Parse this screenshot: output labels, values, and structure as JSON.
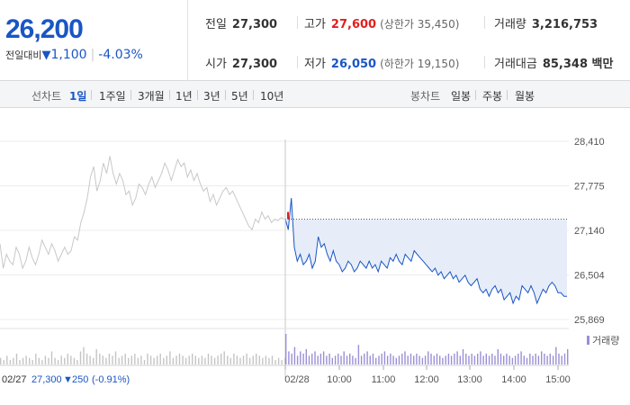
{
  "quote": {
    "price": "26,200",
    "change_label": "전일대비",
    "change_arrow": "▼",
    "change_value": "1,100",
    "change_pct": "-4.03%"
  },
  "stats": {
    "prev_label": "전일",
    "prev_value": "27,300",
    "open_label": "시가",
    "open_value": "27,300",
    "high_label": "고가",
    "high_value": "27,600",
    "upper_limit": "(상한가 35,450)",
    "low_label": "저가",
    "low_value": "26,050",
    "lower_limit": "(하한가 19,150)",
    "volume_label": "거래량",
    "volume_value": "3,216,753",
    "amount_label": "거래대금",
    "amount_value": "85,348 백만"
  },
  "tabs": {
    "line_label": "선차트",
    "line_items": [
      "1일",
      "1주일",
      "3개월",
      "1년",
      "3년",
      "5년",
      "10년"
    ],
    "active": "1일",
    "candle_label": "봉차트",
    "candle_items": [
      "일봉",
      "주봉",
      "월봉"
    ]
  },
  "colors": {
    "blue": "#1a56c4",
    "red": "#e02020",
    "fill": "#e6edf9",
    "prev_line": "#c8c8c8",
    "volume": "#9b8fd6"
  },
  "chart_data": {
    "type": "line",
    "ylim": [
      25869,
      28410
    ],
    "y_ticks": [
      "28,410",
      "27,775",
      "27,140",
      "26,504",
      "25,869"
    ],
    "y_tick_values": [
      28410,
      27775,
      27140,
      26504,
      25869
    ],
    "x_ticks": [
      "02/28",
      "10:00",
      "11:00",
      "12:00",
      "13:00",
      "14:00",
      "15:00"
    ],
    "previous_close": 27300,
    "volume_legend": "거래량",
    "prev_day": {
      "date": "02/27",
      "close": "27,300",
      "arrow": "▼",
      "change": "250",
      "pct": "(-0.91%)",
      "values": [
        26950,
        26600,
        26800,
        26700,
        26650,
        26900,
        26800,
        26600,
        26700,
        26900,
        26750,
        26650,
        26800,
        27000,
        26900,
        26800,
        26950,
        26850,
        26700,
        26800,
        26900,
        26800,
        26850,
        27050,
        27000,
        27250,
        27400,
        27600,
        27900,
        28050,
        27700,
        27850,
        28100,
        27950,
        28200,
        27950,
        27800,
        27950,
        27850,
        27650,
        27700,
        27500,
        27600,
        27800,
        27750,
        27650,
        27800,
        27900,
        27750,
        27850,
        27950,
        28100,
        28000,
        27850,
        28000,
        28150,
        28050,
        28100,
        27900,
        28000,
        27850,
        27950,
        27800,
        27700,
        27750,
        27550,
        27650,
        27500,
        27600,
        27700,
        27750,
        27650,
        27700,
        27600,
        27500,
        27400,
        27300,
        27200,
        27150,
        27300,
        27250,
        27400,
        27300,
        27350,
        27250,
        27300,
        27280,
        27320,
        27300
      ]
    },
    "series": [
      {
        "values": [
          27300,
          27150,
          27600,
          26900,
          26700,
          26800,
          26650,
          26700,
          26800,
          26600,
          26700,
          27050,
          26900,
          26950,
          26800,
          26700,
          26850,
          26700,
          26650,
          26550,
          26600,
          26700,
          26650,
          26550,
          26600,
          26700,
          26650,
          26600,
          26700,
          26600,
          26650,
          26550,
          26700,
          26650,
          26600,
          26750,
          26700,
          26800,
          26700,
          26650,
          26800,
          26750,
          26700,
          26850,
          26800,
          26750,
          26700,
          26650,
          26600,
          26550,
          26600,
          26500,
          26550,
          26450,
          26500,
          26550,
          26450,
          26500,
          26400,
          26450,
          26500,
          26400,
          26350,
          26400,
          26450,
          26300,
          26250,
          26300,
          26200,
          26300,
          26350,
          26250,
          26300,
          26150,
          26200,
          26250,
          26100,
          26200,
          26150,
          26350,
          26300,
          26250,
          26350,
          26250,
          26100,
          26200,
          26300,
          26250,
          26350,
          26400,
          26350,
          26250,
          26250,
          26200,
          26200
        ]
      }
    ],
    "volume": [
      3,
      2,
      4,
      2,
      3,
      5,
      2,
      3,
      4,
      3,
      2,
      5,
      3,
      2,
      4,
      3,
      6,
      3,
      2,
      4,
      3,
      5,
      4,
      3,
      2,
      6,
      8,
      5,
      4,
      3,
      7,
      5,
      4,
      3,
      5,
      4,
      6,
      3,
      4,
      5,
      3,
      4,
      5,
      3,
      4,
      2,
      5,
      4,
      3,
      4,
      5,
      3,
      4,
      6,
      3,
      4,
      5,
      4,
      3,
      4,
      5,
      4,
      3,
      4,
      3,
      5,
      4,
      3,
      4,
      5,
      6,
      4,
      3,
      5,
      4,
      3,
      4,
      5,
      3,
      4,
      5,
      4,
      3,
      4,
      3,
      4,
      2,
      3,
      2,
      3,
      14,
      6,
      5,
      8,
      4,
      6,
      5,
      7,
      4,
      5,
      6,
      4,
      5,
      6,
      4,
      5,
      3,
      4,
      5,
      4,
      6,
      4,
      5,
      4,
      3,
      9,
      4,
      5,
      6,
      4,
      5,
      3,
      4,
      5,
      6,
      4,
      5,
      4,
      3,
      4,
      5,
      6,
      4,
      5,
      4,
      5,
      4,
      3,
      4,
      6,
      5,
      4,
      5,
      4,
      3,
      4,
      5,
      4,
      5,
      6,
      4,
      7,
      5,
      4,
      5,
      4,
      5,
      6,
      4,
      5,
      4,
      5,
      4,
      7,
      5,
      4,
      5,
      4,
      3,
      4,
      5,
      6,
      4,
      3,
      5,
      4,
      5,
      4,
      6,
      5,
      4,
      5,
      4,
      8,
      5,
      4,
      5,
      7
    ]
  }
}
